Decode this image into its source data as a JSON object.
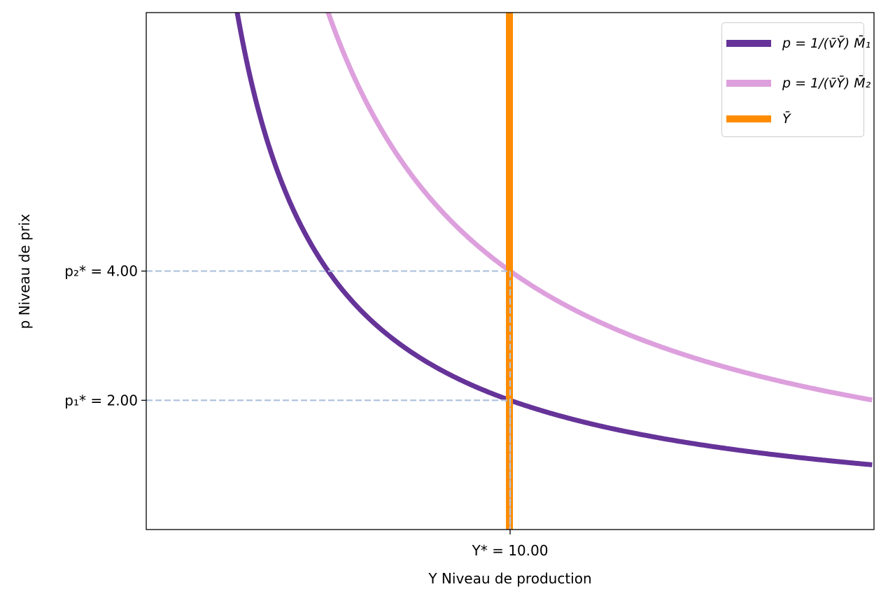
{
  "chart_data": {
    "type": "line",
    "title": "",
    "xlabel": "Y Niveau de production",
    "ylabel": "p Niveau de prix",
    "xlim": [
      0,
      20
    ],
    "ylim": [
      0,
      8
    ],
    "grid": false,
    "legend_position": "top-right",
    "series": [
      {
        "name": "p = 1/(v̄Ȳ) M̄₁",
        "formula": "p = 20 / Y",
        "k": 20,
        "color": "#663399"
      },
      {
        "name": "p = 1/(v̄Ȳ) M̄₂",
        "formula": "p = 40 / Y",
        "k": 40,
        "color": "#DDA0DD"
      },
      {
        "name": "Ȳ",
        "type": "vertical",
        "x": 10,
        "color": "#FF8C00"
      }
    ],
    "reference_lines": {
      "color": "#B0C4DE",
      "style": "dashed",
      "points": [
        {
          "x": 10,
          "y": 2
        },
        {
          "x": 10,
          "y": 4
        }
      ]
    },
    "xticks": [
      {
        "value": 10,
        "label": "Y* = 10.00"
      }
    ],
    "yticks": [
      {
        "value": 2,
        "label": "p₁* = 2.00"
      },
      {
        "value": 4,
        "label": "p₂* = 4.00"
      }
    ]
  }
}
